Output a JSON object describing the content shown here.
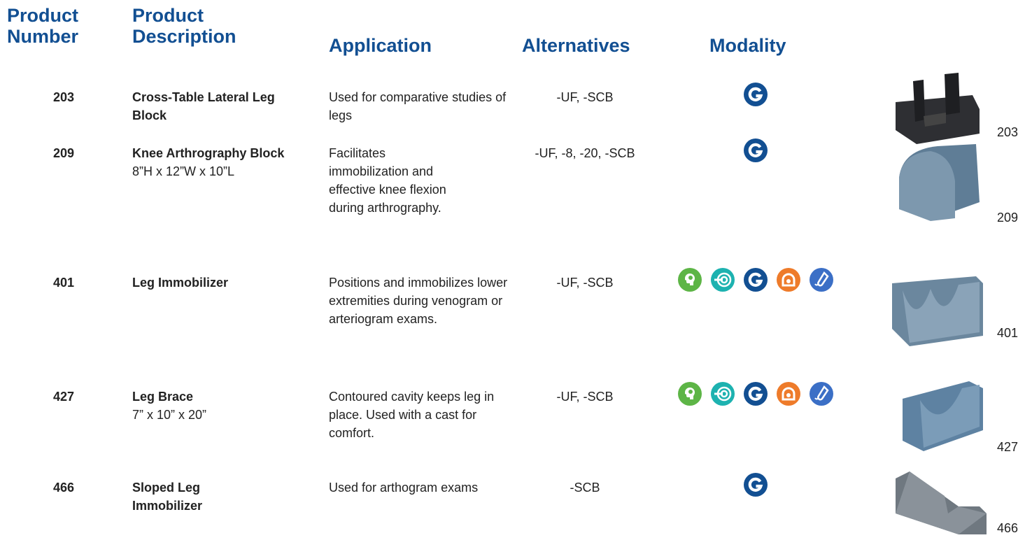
{
  "header": {
    "product_number": "Product Number",
    "product_description": "Product Description",
    "application": "Application",
    "alternatives": "Alternatives",
    "modality": "Modality"
  },
  "rows": [
    {
      "number": "203",
      "name": "Cross-Table Lateral Leg Block",
      "application": "Used for comparative studies of legs",
      "alternatives": "-UF, -SCB"
    },
    {
      "number": "209",
      "name": "Knee Arthrography Block",
      "size": "8”H x 12”W x 10”L",
      "application": "Facilitates immobilization and effective knee flexion during arthrography.",
      "alternatives": "-UF, -8, -20, -SCB"
    },
    {
      "number": "401",
      "name": "Leg Immobilizer",
      "application": "Positions and immobilizes lower extremities during venogram or arteriogram exams.",
      "alternatives": "-UF, -SCB"
    },
    {
      "number": "427",
      "name": "Leg Brace",
      "size": "7” x 10” x 20”",
      "application": "Contoured cavity keeps leg in place. Used with a cast for comfort.",
      "alternatives": "-UF, -SCB"
    },
    {
      "number": "466",
      "name": "Sloped Leg Immobilizer",
      "application": "Used for arthogram exams",
      "alternatives": "-SCB"
    }
  ]
}
